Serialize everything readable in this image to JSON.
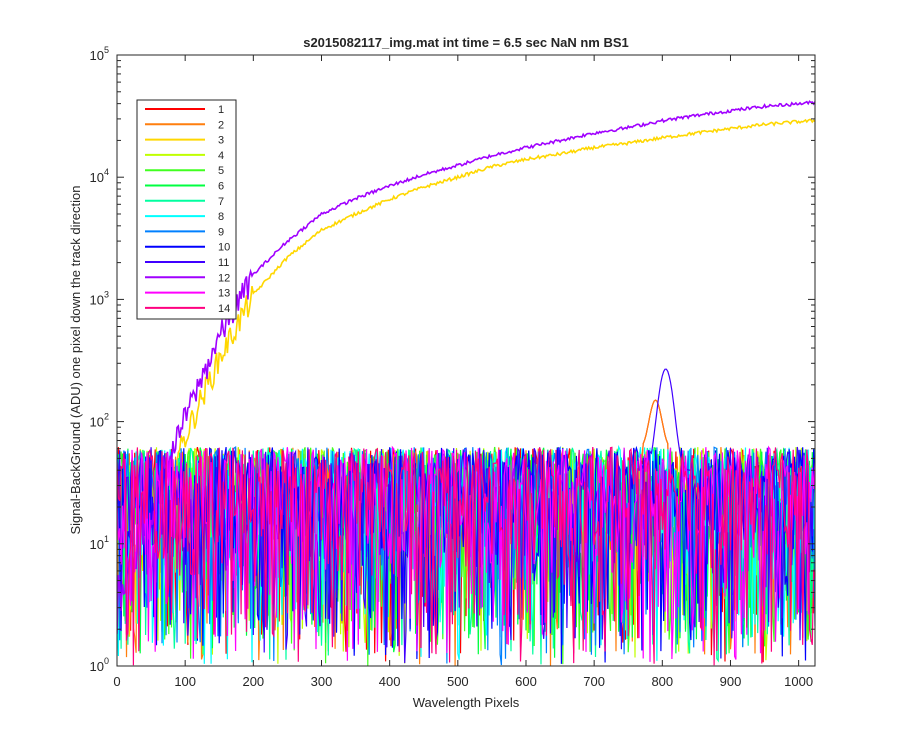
{
  "chart_data": {
    "type": "line",
    "title": "s2015082117_img.mat int time = 6.5 sec  NaN nm BS1",
    "xlabel": "Wavelength Pixels",
    "ylabel": "Signal-BackGround (ADU) one pixel down the track direction",
    "xlim": [
      0,
      1024
    ],
    "ylim": [
      1,
      100000
    ],
    "yscale": "log",
    "xticks": [
      0,
      100,
      200,
      300,
      400,
      500,
      600,
      700,
      800,
      900,
      1000
    ],
    "yticks": [
      {
        "base": "10",
        "exp": "0",
        "value": 1
      },
      {
        "base": "10",
        "exp": "1",
        "value": 10
      },
      {
        "base": "10",
        "exp": "2",
        "value": 100
      },
      {
        "base": "10",
        "exp": "3",
        "value": 1000
      },
      {
        "base": "10",
        "exp": "4",
        "value": 10000
      },
      {
        "base": "10",
        "exp": "5",
        "value": 100000
      }
    ],
    "legend_location": "top-left",
    "series": [
      {
        "name": "1",
        "color": "#ff0000",
        "kind": "noise"
      },
      {
        "name": "2",
        "color": "#ff7f0e",
        "kind": "noise"
      },
      {
        "name": "3",
        "color": "#ffd700",
        "kind": "rising",
        "points": [
          [
            0,
            3
          ],
          [
            60,
            18
          ],
          [
            80,
            40
          ],
          [
            100,
            75
          ],
          [
            120,
            140
          ],
          [
            150,
            330
          ],
          [
            200,
            1100
          ],
          [
            250,
            2200
          ],
          [
            300,
            3700
          ],
          [
            350,
            5000
          ],
          [
            400,
            6600
          ],
          [
            450,
            8300
          ],
          [
            500,
            10000
          ],
          [
            550,
            12200
          ],
          [
            600,
            14000
          ],
          [
            650,
            15500
          ],
          [
            700,
            17500
          ],
          [
            750,
            19000
          ],
          [
            800,
            21000
          ],
          [
            850,
            23000
          ],
          [
            900,
            25000
          ],
          [
            950,
            27000
          ],
          [
            1000,
            28500
          ],
          [
            1024,
            29000
          ]
        ]
      },
      {
        "name": "4",
        "color": "#c0ff00",
        "kind": "noise"
      },
      {
        "name": "5",
        "color": "#40ff20",
        "kind": "noise"
      },
      {
        "name": "6",
        "color": "#00ff40",
        "kind": "noise"
      },
      {
        "name": "7",
        "color": "#00ffa0",
        "kind": "noise"
      },
      {
        "name": "8",
        "color": "#00ffff",
        "kind": "noise"
      },
      {
        "name": "9",
        "color": "#0080ff",
        "kind": "noise"
      },
      {
        "name": "10",
        "color": "#0000ff",
        "kind": "noise"
      },
      {
        "name": "11",
        "color": "#4000ff",
        "kind": "noise_peak",
        "peak": {
          "x": 805,
          "y": 270
        }
      },
      {
        "name": "12",
        "color": "#a000ff",
        "kind": "rising",
        "points": [
          [
            0,
            4
          ],
          [
            60,
            35
          ],
          [
            80,
            55
          ],
          [
            100,
            110
          ],
          [
            120,
            200
          ],
          [
            150,
            500
          ],
          [
            200,
            1600
          ],
          [
            250,
            3000
          ],
          [
            300,
            5000
          ],
          [
            350,
            6700
          ],
          [
            400,
            8500
          ],
          [
            450,
            10500
          ],
          [
            500,
            12500
          ],
          [
            550,
            15000
          ],
          [
            600,
            17500
          ],
          [
            650,
            20000
          ],
          [
            700,
            23000
          ],
          [
            750,
            25500
          ],
          [
            800,
            29000
          ],
          [
            850,
            32000
          ],
          [
            900,
            35000
          ],
          [
            950,
            38000
          ],
          [
            1000,
            40000
          ],
          [
            1024,
            41000
          ]
        ]
      },
      {
        "name": "13",
        "color": "#ff00ff",
        "kind": "noise"
      },
      {
        "name": "14",
        "color": "#ff0080",
        "kind": "noise"
      }
    ]
  }
}
